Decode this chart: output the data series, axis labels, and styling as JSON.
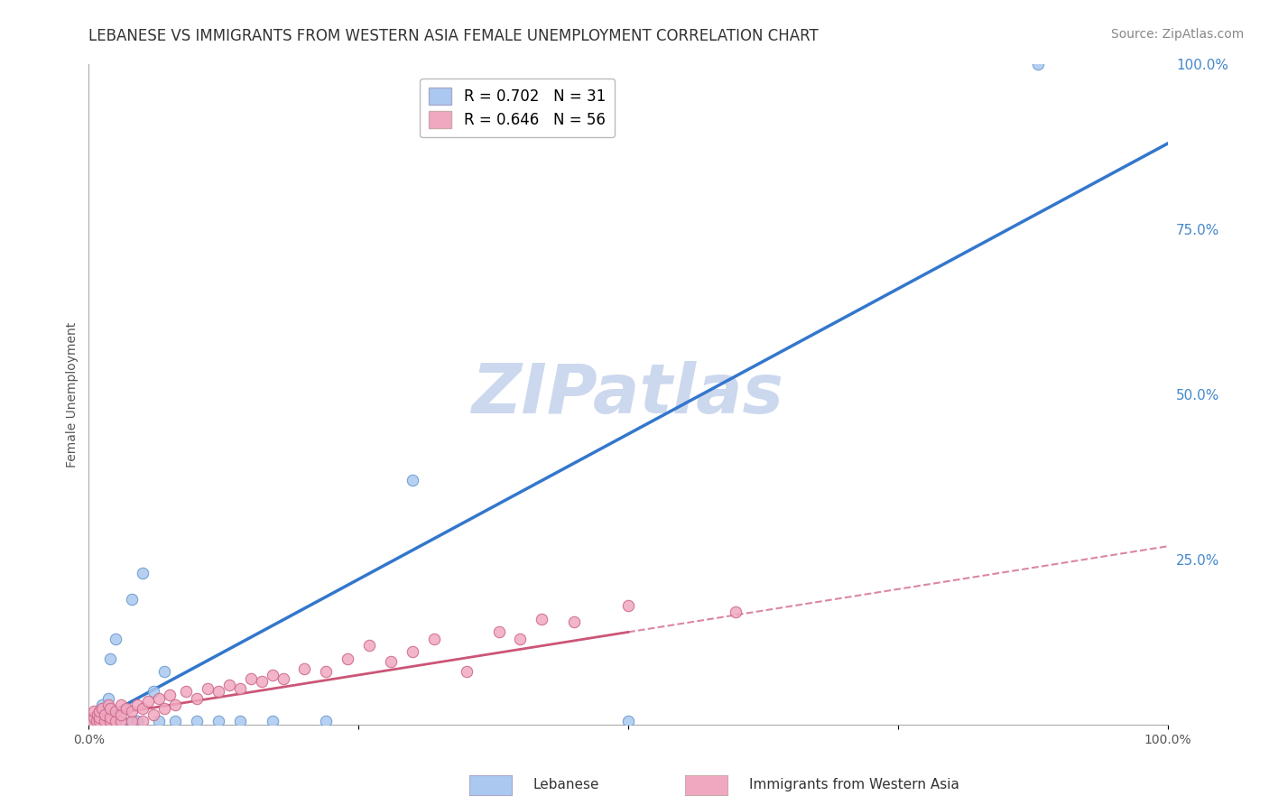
{
  "title": "LEBANESE VS IMMIGRANTS FROM WESTERN ASIA FEMALE UNEMPLOYMENT CORRELATION CHART",
  "source": "Source: ZipAtlas.com",
  "ylabel": "Female Unemployment",
  "watermark": "ZIPatlas",
  "xlim": [
    0,
    1.0
  ],
  "ylim": [
    0,
    1.0
  ],
  "xtick_labels": [
    "0.0%",
    "",
    "",
    "",
    "100.0%"
  ],
  "xtick_positions": [
    0.0,
    0.25,
    0.5,
    0.75,
    1.0
  ],
  "ytick_right_labels": [
    "100.0%",
    "75.0%",
    "50.0%",
    "25.0%"
  ],
  "ytick_right_positions": [
    1.0,
    0.75,
    0.5,
    0.25
  ],
  "legend_items": [
    {
      "label": "R = 0.702   N = 31",
      "color": "#aac8f0"
    },
    {
      "label": "R = 0.646   N = 56",
      "color": "#f0a8c0"
    }
  ],
  "lebanese_color": "#aac8f0",
  "lebanese_edge": "#6699cc",
  "lebanese_line_color": "#3377cc",
  "lebanese_line_y0": 0.0,
  "lebanese_line_y1": 0.88,
  "immigrants_color": "#f0a8c0",
  "immigrants_edge": "#cc6688",
  "immigrants_line_color": "#cc5577",
  "immigrants_line_y0": 0.01,
  "immigrants_line_y1": 0.27,
  "background_color": "#ffffff",
  "grid_color": "#dddddd",
  "title_fontsize": 12,
  "source_fontsize": 10,
  "tick_fontsize": 10,
  "ylabel_fontsize": 10,
  "watermark_color": "#ccd8ee",
  "watermark_fontsize": 55,
  "leb_x": [
    0.003,
    0.005,
    0.008,
    0.008,
    0.01,
    0.01,
    0.012,
    0.015,
    0.015,
    0.018,
    0.02,
    0.02,
    0.025,
    0.025,
    0.03,
    0.04,
    0.04,
    0.045,
    0.05,
    0.06,
    0.065,
    0.07,
    0.08,
    0.1,
    0.12,
    0.14,
    0.17,
    0.22,
    0.3,
    0.5,
    0.88
  ],
  "leb_y": [
    0.005,
    0.01,
    0.01,
    0.015,
    0.005,
    0.02,
    0.03,
    0.01,
    0.02,
    0.04,
    0.005,
    0.1,
    0.005,
    0.13,
    0.005,
    0.005,
    0.19,
    0.005,
    0.23,
    0.05,
    0.005,
    0.08,
    0.005,
    0.005,
    0.005,
    0.005,
    0.005,
    0.005,
    0.37,
    0.005,
    1.0
  ],
  "imm_x": [
    0.003,
    0.005,
    0.005,
    0.007,
    0.008,
    0.01,
    0.01,
    0.01,
    0.012,
    0.015,
    0.015,
    0.018,
    0.02,
    0.02,
    0.02,
    0.025,
    0.025,
    0.03,
    0.03,
    0.03,
    0.035,
    0.04,
    0.04,
    0.045,
    0.05,
    0.05,
    0.055,
    0.06,
    0.065,
    0.07,
    0.075,
    0.08,
    0.09,
    0.1,
    0.11,
    0.12,
    0.13,
    0.14,
    0.15,
    0.16,
    0.17,
    0.18,
    0.2,
    0.22,
    0.24,
    0.26,
    0.28,
    0.3,
    0.32,
    0.35,
    0.38,
    0.4,
    0.42,
    0.45,
    0.5,
    0.6
  ],
  "imm_y": [
    0.005,
    0.01,
    0.02,
    0.005,
    0.015,
    0.005,
    0.01,
    0.02,
    0.025,
    0.005,
    0.015,
    0.03,
    0.005,
    0.01,
    0.025,
    0.005,
    0.02,
    0.005,
    0.015,
    0.03,
    0.025,
    0.005,
    0.02,
    0.03,
    0.005,
    0.025,
    0.035,
    0.015,
    0.04,
    0.025,
    0.045,
    0.03,
    0.05,
    0.04,
    0.055,
    0.05,
    0.06,
    0.055,
    0.07,
    0.065,
    0.075,
    0.07,
    0.085,
    0.08,
    0.1,
    0.12,
    0.095,
    0.11,
    0.13,
    0.08,
    0.14,
    0.13,
    0.16,
    0.155,
    0.18,
    0.17
  ]
}
